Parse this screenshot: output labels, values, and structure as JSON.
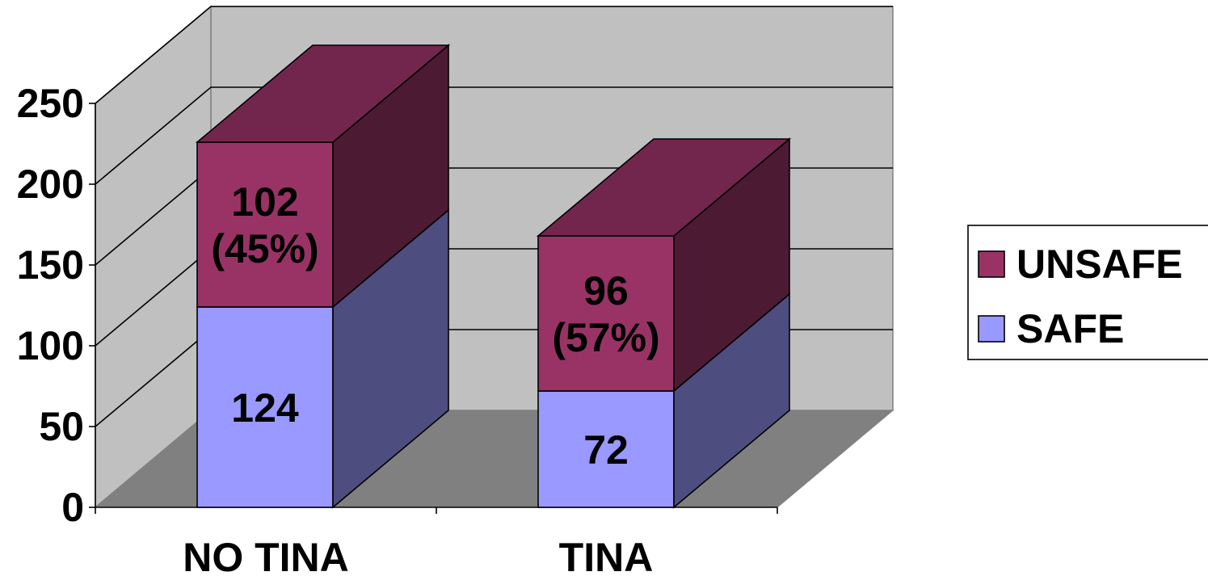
{
  "chart_data": {
    "type": "bar",
    "stacked": true,
    "three_d": true,
    "categories": [
      "NO TINA",
      "TINA"
    ],
    "series": [
      {
        "name": "SAFE",
        "color": "#9999FF",
        "values": [
          124,
          72
        ],
        "labels": [
          [
            "124"
          ],
          [
            "72"
          ]
        ]
      },
      {
        "name": "UNSAFE",
        "color": "#993366",
        "values": [
          102,
          96
        ],
        "labels": [
          [
            "102",
            "(45%)"
          ],
          [
            "96",
            "(57%)"
          ]
        ]
      }
    ],
    "yticks": [
      "0",
      "50",
      "100",
      "150",
      "200",
      "250"
    ],
    "ylim": [
      0,
      250
    ],
    "grid": true,
    "legend_position": "right",
    "title": "",
    "xlabel": "",
    "ylabel": ""
  }
}
